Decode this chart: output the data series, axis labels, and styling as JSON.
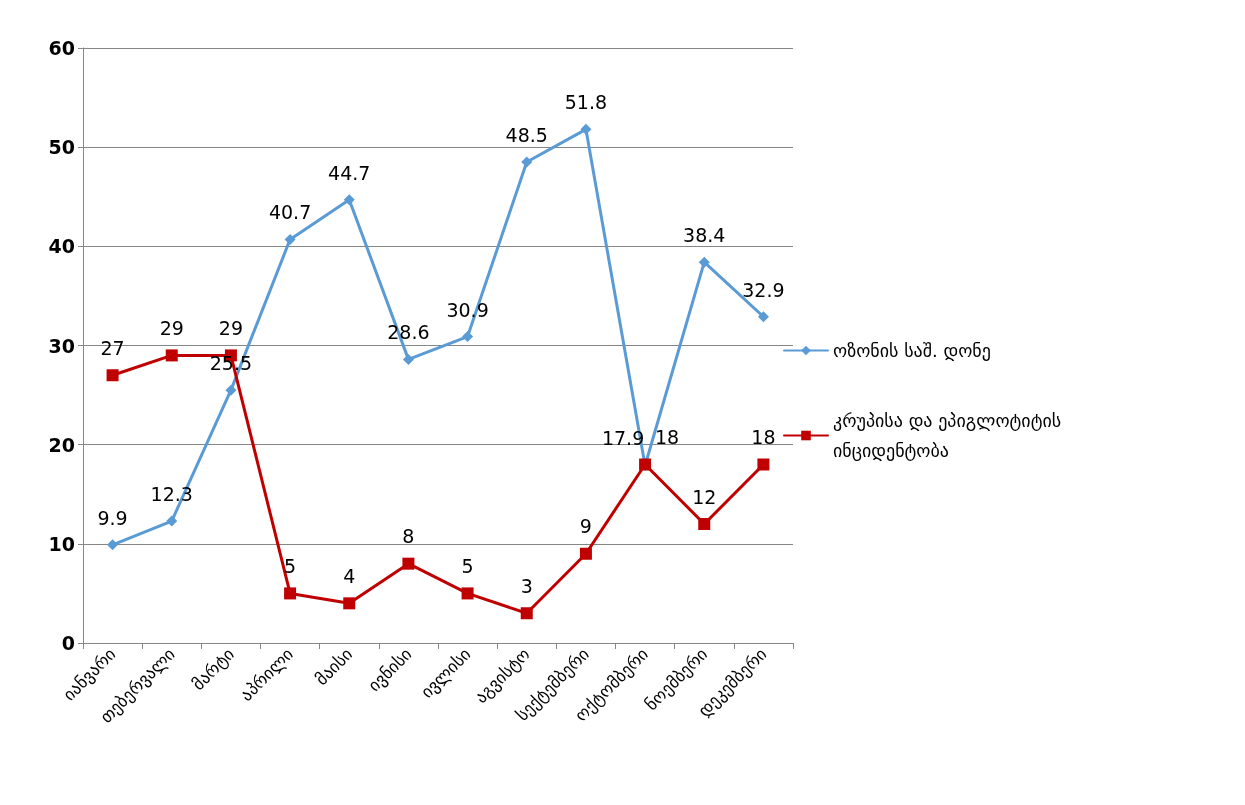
{
  "chart_data": {
    "type": "line",
    "categories": [
      "იანვარი",
      "თებერვალი",
      "მარტი",
      "აპრილი",
      "მაისი",
      "ივნისი",
      "ივლისი",
      "აგვისტო",
      "სექტემბერი",
      "ოქტომბერი",
      "ნოემბერი",
      "დეკემბერი"
    ],
    "series": [
      {
        "name": "ოზონის საშ. დონე",
        "color": "#5b9bd5",
        "marker": "diamond",
        "values": [
          9.9,
          12.3,
          25.5,
          40.7,
          44.7,
          28.6,
          30.9,
          48.5,
          51.8,
          17.9,
          38.4,
          32.9
        ]
      },
      {
        "name": "კრუპისა და ეპიგლოტიტის ინციდენტობა",
        "color": "#c00000",
        "marker": "square",
        "values": [
          27,
          29,
          29,
          5,
          4,
          8,
          5,
          3,
          9,
          18,
          12,
          18
        ]
      }
    ],
    "ylim": [
      0,
      60
    ],
    "yticks": [
      0,
      10,
      20,
      30,
      40,
      50,
      60
    ],
    "grid": "y",
    "legend": "right",
    "data_labels": true
  }
}
